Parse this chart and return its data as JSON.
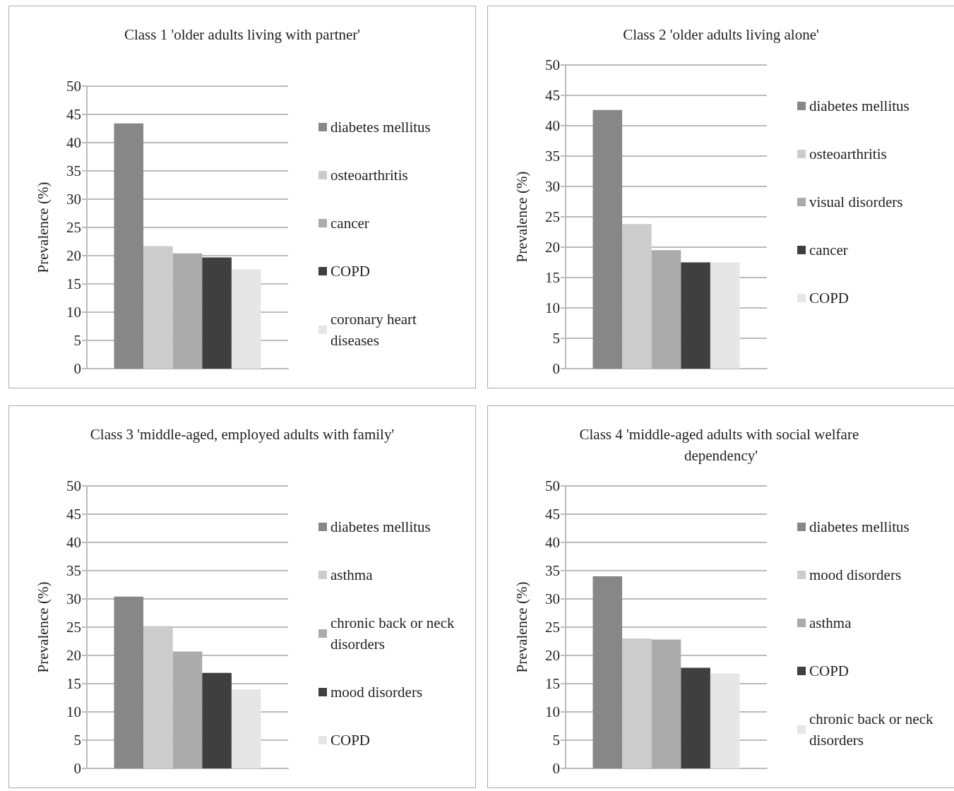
{
  "chart_data": [
    {
      "type": "bar",
      "title": "Class 1 'older adults living with partner'",
      "ylabel": "Prevalence (%)",
      "categories": [
        null
      ],
      "ylim": [
        0,
        50
      ],
      "yticks": [
        0,
        5,
        10,
        15,
        20,
        25,
        30,
        35,
        40,
        45,
        50
      ],
      "grid": "y",
      "legend": "right",
      "series": [
        {
          "name": "diabetes mellitus",
          "color": "#878787",
          "values": [
            43.4
          ]
        },
        {
          "name": "osteoarthritis",
          "color": "#cccccc",
          "values": [
            21.7
          ]
        },
        {
          "name": "cancer",
          "color": "#ababab",
          "values": [
            20.4
          ]
        },
        {
          "name": "COPD",
          "color": "#3f3f3f",
          "values": [
            19.7
          ]
        },
        {
          "name": "coronary heart diseases",
          "color": "#e6e6e6",
          "values": [
            17.6
          ]
        }
      ]
    },
    {
      "type": "bar",
      "title": "Class 2 'older adults living alone'",
      "ylabel": "Prevalence (%)",
      "categories": [
        null
      ],
      "ylim": [
        0,
        50
      ],
      "yticks": [
        0,
        5,
        10,
        15,
        20,
        25,
        30,
        35,
        40,
        45,
        50
      ],
      "grid": "y",
      "legend": "right",
      "series": [
        {
          "name": "diabetes mellitus",
          "color": "#878787",
          "values": [
            42.6
          ]
        },
        {
          "name": "osteoarthritis",
          "color": "#cccccc",
          "values": [
            23.8
          ]
        },
        {
          "name": "visual disorders",
          "color": "#ababab",
          "values": [
            19.5
          ]
        },
        {
          "name": "cancer",
          "color": "#3f3f3f",
          "values": [
            17.5
          ]
        },
        {
          "name": "COPD",
          "color": "#e6e6e6",
          "values": [
            17.5
          ]
        }
      ]
    },
    {
      "type": "bar",
      "title": "Class 3 'middle-aged, employed adults with family'",
      "ylabel": "Prevalence (%)",
      "categories": [
        null
      ],
      "ylim": [
        0,
        50
      ],
      "yticks": [
        0,
        5,
        10,
        15,
        20,
        25,
        30,
        35,
        40,
        45,
        50
      ],
      "grid": "y",
      "legend": "right",
      "series": [
        {
          "name": "diabetes mellitus",
          "color": "#878787",
          "values": [
            30.4
          ]
        },
        {
          "name": "asthma",
          "color": "#cccccc",
          "values": [
            25.2
          ]
        },
        {
          "name": "chronic back or neck disorders",
          "color": "#ababab",
          "values": [
            20.7
          ]
        },
        {
          "name": "mood disorders",
          "color": "#3f3f3f",
          "values": [
            16.9
          ]
        },
        {
          "name": "COPD",
          "color": "#e6e6e6",
          "values": [
            14.0
          ]
        }
      ]
    },
    {
      "type": "bar",
      "title": "Class 4 'middle-aged adults with social welfare dependency'",
      "ylabel": "Prevalence (%)",
      "categories": [
        null
      ],
      "ylim": [
        0,
        50
      ],
      "yticks": [
        0,
        5,
        10,
        15,
        20,
        25,
        30,
        35,
        40,
        45,
        50
      ],
      "grid": "y",
      "legend": "right",
      "series": [
        {
          "name": "diabetes mellitus",
          "color": "#878787",
          "values": [
            34.0
          ]
        },
        {
          "name": "mood disorders",
          "color": "#cccccc",
          "values": [
            23.0
          ]
        },
        {
          "name": "asthma",
          "color": "#ababab",
          "values": [
            22.8
          ]
        },
        {
          "name": "COPD",
          "color": "#3f3f3f",
          "values": [
            17.8
          ]
        },
        {
          "name": "chronic back or neck disorders",
          "color": "#e6e6e6",
          "values": [
            16.8
          ]
        }
      ]
    }
  ]
}
